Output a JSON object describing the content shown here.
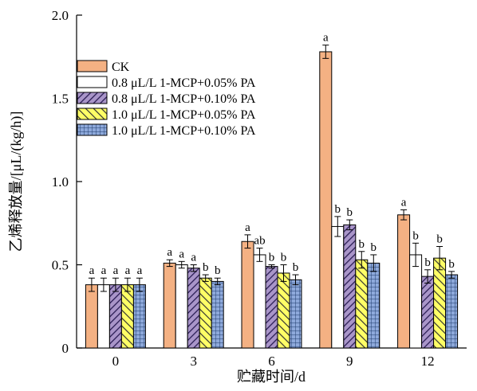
{
  "chart_data": {
    "type": "bar",
    "xlabel": "贮藏时间/d",
    "ylabel": "乙烯释放量/[μL/(kg/h)]",
    "ylim": [
      0,
      2.0
    ],
    "yticks": [
      "0",
      "0.5",
      "1.0",
      "1.5",
      "2.0"
    ],
    "categories": [
      "0",
      "3",
      "6",
      "9",
      "12"
    ],
    "legend_position": "upper-left",
    "series": [
      {
        "name": "CK",
        "color": "#f4b183",
        "pattern": "solid",
        "values": [
          0.38,
          0.51,
          0.64,
          1.78,
          0.8
        ],
        "errors": [
          0.04,
          0.02,
          0.04,
          0.04,
          0.03
        ],
        "labels": [
          "a",
          "a",
          "a",
          "a",
          "a"
        ]
      },
      {
        "name": "0.8 μL/L 1-MCP+0.05% PA",
        "color": "#ffffff",
        "pattern": "none",
        "values": [
          0.38,
          0.5,
          0.56,
          0.73,
          0.56
        ],
        "errors": [
          0.04,
          0.02,
          0.04,
          0.06,
          0.07
        ],
        "labels": [
          "a",
          "a",
          "ab",
          "b",
          "b"
        ]
      },
      {
        "name": "0.8 μL/L 1-MCP+0.10% PA",
        "color": "#a995c9",
        "pattern": "diagonal",
        "values": [
          0.38,
          0.48,
          0.49,
          0.74,
          0.43
        ],
        "errors": [
          0.04,
          0.02,
          0.01,
          0.03,
          0.04
        ],
        "labels": [
          "a",
          "a",
          "b",
          "b",
          "b"
        ]
      },
      {
        "name": "1.0 μL/L 1-MCP+0.05% PA",
        "color": "#ffff66",
        "pattern": "diagonal",
        "values": [
          0.38,
          0.42,
          0.45,
          0.53,
          0.54
        ],
        "errors": [
          0.04,
          0.02,
          0.05,
          0.05,
          0.07
        ],
        "labels": [
          "a",
          "b",
          "b",
          "b",
          "b"
        ]
      },
      {
        "name": "1.0 μL/L 1-MCP+0.10% PA",
        "color": "#8ea9db",
        "pattern": "grid",
        "values": [
          0.38,
          0.4,
          0.41,
          0.51,
          0.44
        ],
        "errors": [
          0.04,
          0.02,
          0.03,
          0.05,
          0.02
        ],
        "labels": [
          "a",
          "b",
          "b",
          "b",
          "b"
        ]
      }
    ]
  }
}
